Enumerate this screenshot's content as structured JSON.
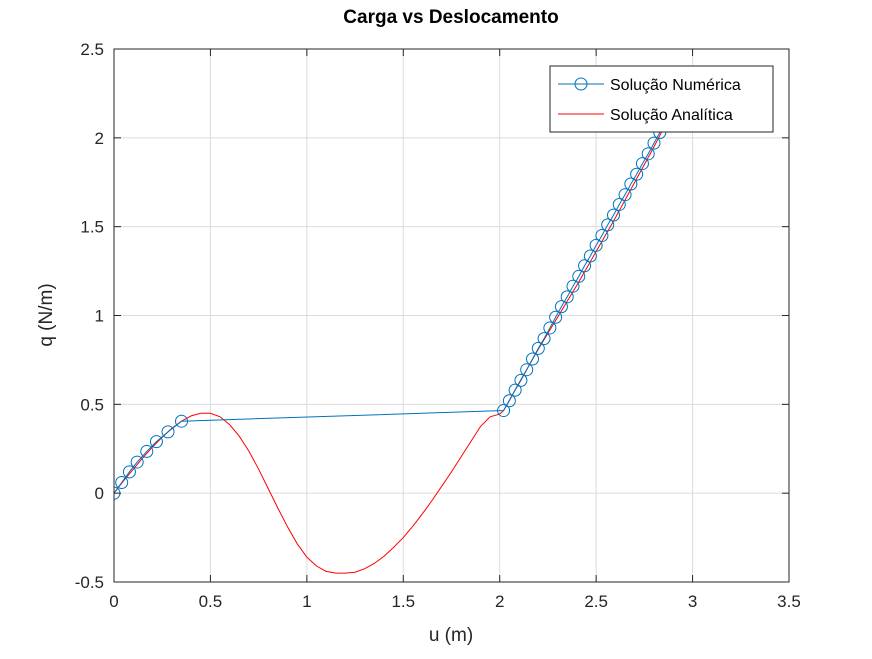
{
  "chart_data": {
    "type": "line",
    "title": "Carga vs Deslocamento",
    "xlabel": "u (m)",
    "ylabel": "q (N/m)",
    "xlim": [
      0,
      3.5
    ],
    "ylim": [
      -0.5,
      2.5
    ],
    "xticks": [
      0,
      0.5,
      1,
      1.5,
      2,
      2.5,
      3,
      3.5
    ],
    "yticks": [
      -0.5,
      0,
      0.5,
      1,
      1.5,
      2,
      2.5
    ],
    "xtick_labels": [
      "0",
      "0.5",
      "1",
      "1.5",
      "2",
      "2.5",
      "3",
      "3.5"
    ],
    "ytick_labels": [
      "-0.5",
      "0",
      "0.5",
      "1",
      "1.5",
      "2",
      "2.5"
    ],
    "grid": true,
    "legend_position": "top-right",
    "series": [
      {
        "name": "Solução Numérica",
        "color": "#0072BD",
        "marker": "circle",
        "x": [
          0,
          0.04,
          0.08,
          0.12,
          0.17,
          0.22,
          0.28,
          0.35,
          2.02,
          2.05,
          2.08,
          2.11,
          2.14,
          2.17,
          2.2,
          2.23,
          2.26,
          2.29,
          2.32,
          2.35,
          2.38,
          2.41,
          2.44,
          2.47,
          2.5,
          2.53,
          2.56,
          2.59,
          2.62,
          2.65,
          2.68,
          2.71,
          2.74,
          2.77,
          2.8,
          2.83,
          2.86
        ],
        "y": [
          0,
          0.06,
          0.12,
          0.175,
          0.235,
          0.29,
          0.345,
          0.405,
          0.465,
          0.52,
          0.58,
          0.635,
          0.695,
          0.755,
          0.815,
          0.87,
          0.93,
          0.99,
          1.05,
          1.105,
          1.165,
          1.22,
          1.28,
          1.335,
          1.395,
          1.45,
          1.51,
          1.565,
          1.625,
          1.68,
          1.74,
          1.795,
          1.855,
          1.91,
          1.97,
          2.03,
          2.09
        ]
      },
      {
        "name": "Solução Analítica",
        "color": "#FF0000",
        "marker": "none",
        "x": [
          0,
          0.05,
          0.1,
          0.15,
          0.2,
          0.25,
          0.3,
          0.35,
          0.4,
          0.45,
          0.5,
          0.55,
          0.6,
          0.65,
          0.7,
          0.75,
          0.8,
          0.85,
          0.9,
          0.95,
          1.0,
          1.05,
          1.1,
          1.15,
          1.2,
          1.25,
          1.3,
          1.35,
          1.4,
          1.45,
          1.5,
          1.55,
          1.6,
          1.65,
          1.7,
          1.75,
          1.8,
          1.85,
          1.9,
          1.95,
          2.0,
          2.02,
          2.1,
          2.2,
          2.3,
          2.4,
          2.5,
          2.6,
          2.7,
          2.8,
          2.9
        ],
        "y": [
          0,
          0.07,
          0.135,
          0.2,
          0.26,
          0.315,
          0.365,
          0.405,
          0.435,
          0.45,
          0.45,
          0.43,
          0.385,
          0.32,
          0.235,
          0.135,
          0.025,
          -0.085,
          -0.19,
          -0.285,
          -0.36,
          -0.41,
          -0.44,
          -0.45,
          -0.45,
          -0.445,
          -0.425,
          -0.395,
          -0.355,
          -0.305,
          -0.25,
          -0.185,
          -0.115,
          -0.04,
          0.04,
          0.12,
          0.205,
          0.29,
          0.375,
          0.43,
          0.445,
          0.465,
          0.62,
          0.81,
          0.99,
          1.17,
          1.36,
          1.55,
          1.75,
          1.95,
          2.16
        ]
      }
    ]
  }
}
